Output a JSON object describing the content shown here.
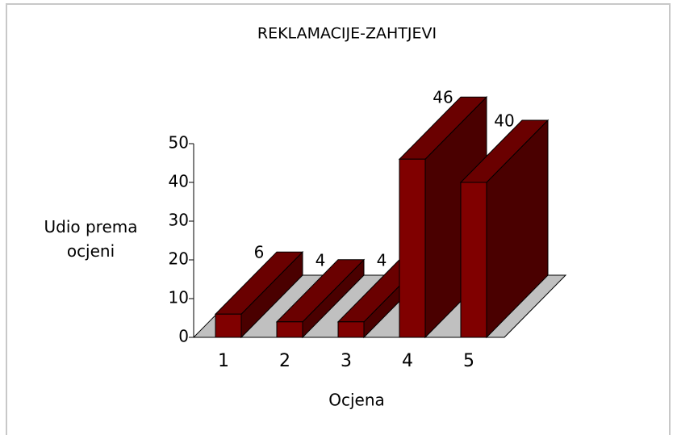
{
  "chart_data": {
    "type": "bar3d",
    "title": "REKLAMACIJE-ZAHTJEVI",
    "categories": [
      "1",
      "2",
      "3",
      "4",
      "5"
    ],
    "values": [
      6,
      4,
      4,
      46,
      40
    ],
    "color": "#800000",
    "ylim": [
      0,
      50
    ],
    "yticks": [
      0,
      10,
      20,
      30,
      40,
      50
    ],
    "ylabel": "Udio prema ocjeni",
    "xlabel": "Ocjena"
  }
}
